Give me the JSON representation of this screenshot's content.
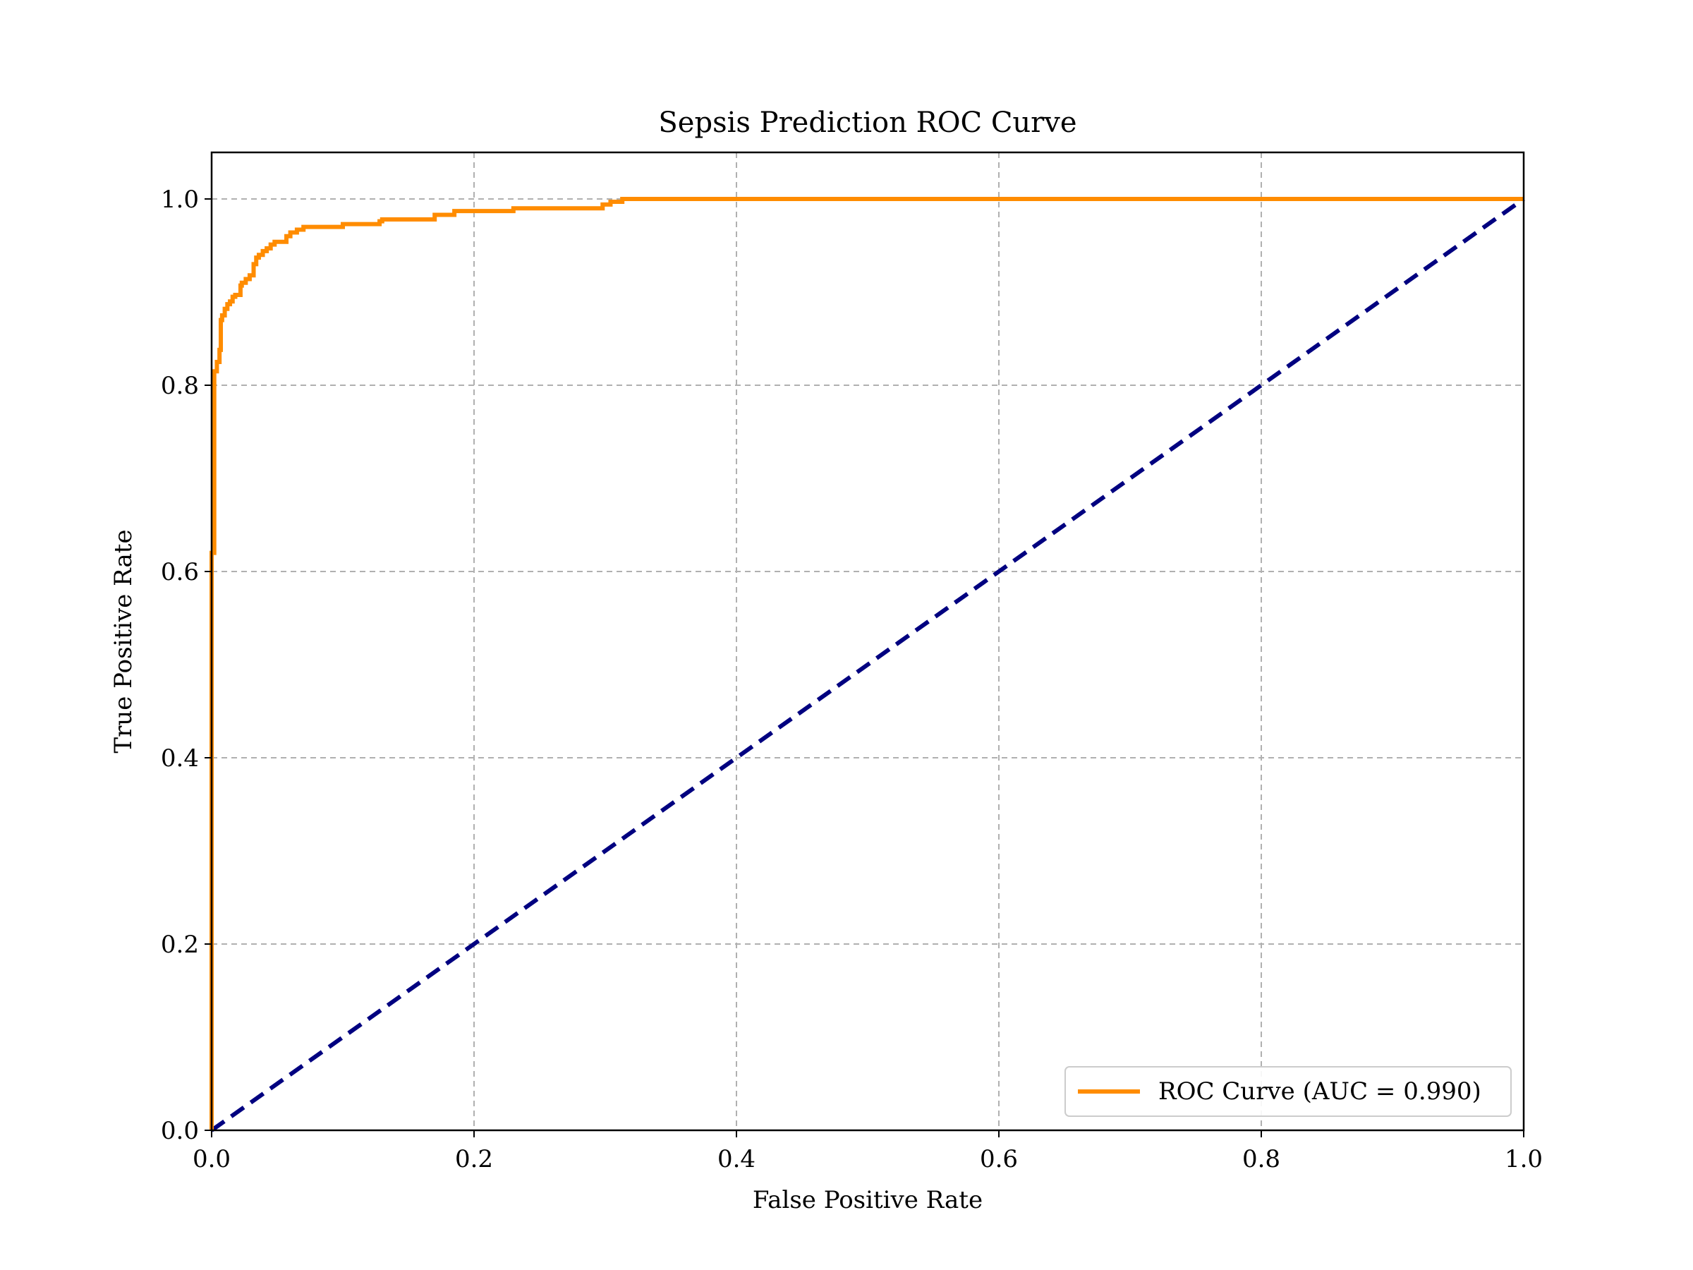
{
  "chart_data": {
    "type": "line",
    "title": "Sepsis Prediction ROC Curve",
    "xlabel": "False Positive Rate",
    "ylabel": "True Positive Rate",
    "xlim": [
      0.0,
      1.0
    ],
    "ylim": [
      0.0,
      1.05
    ],
    "xticks": [
      0.0,
      0.2,
      0.4,
      0.6,
      0.8,
      1.0
    ],
    "yticks": [
      0.0,
      0.2,
      0.4,
      0.6,
      0.8,
      1.0
    ],
    "xtick_labels": [
      "0.0",
      "0.2",
      "0.4",
      "0.6",
      "0.8",
      "1.0"
    ],
    "ytick_labels": [
      "0.0",
      "0.2",
      "0.4",
      "0.6",
      "0.8",
      "1.0"
    ],
    "grid": true,
    "legend_position": "bottom-right",
    "series": [
      {
        "name": "ROC Curve (AUC = 0.990)",
        "color": "#ff8c00",
        "line_style": "solid",
        "x": [
          0.0,
          0.0,
          0.002,
          0.002,
          0.004,
          0.004,
          0.006,
          0.006,
          0.007,
          0.007,
          0.008,
          0.008,
          0.01,
          0.01,
          0.012,
          0.012,
          0.014,
          0.014,
          0.016,
          0.016,
          0.018,
          0.018,
          0.022,
          0.022,
          0.023,
          0.023,
          0.026,
          0.026,
          0.029,
          0.029,
          0.032,
          0.032,
          0.034,
          0.034,
          0.036,
          0.036,
          0.039,
          0.039,
          0.042,
          0.042,
          0.045,
          0.045,
          0.048,
          0.048,
          0.057,
          0.057,
          0.06,
          0.06,
          0.065,
          0.065,
          0.07,
          0.07,
          0.1,
          0.1,
          0.128,
          0.128,
          0.13,
          0.13,
          0.17,
          0.17,
          0.185,
          0.185,
          0.23,
          0.23,
          0.298,
          0.298,
          0.304,
          0.304,
          0.313,
          0.313,
          1.0
        ],
        "y": [
          0.0,
          0.62,
          0.62,
          0.815,
          0.815,
          0.825,
          0.825,
          0.838,
          0.838,
          0.87,
          0.87,
          0.875,
          0.875,
          0.882,
          0.882,
          0.887,
          0.887,
          0.89,
          0.89,
          0.895,
          0.895,
          0.897,
          0.897,
          0.907,
          0.907,
          0.91,
          0.91,
          0.914,
          0.914,
          0.918,
          0.918,
          0.93,
          0.93,
          0.937,
          0.937,
          0.94,
          0.94,
          0.944,
          0.944,
          0.947,
          0.947,
          0.951,
          0.951,
          0.954,
          0.954,
          0.96,
          0.96,
          0.964,
          0.964,
          0.967,
          0.967,
          0.97,
          0.97,
          0.973,
          0.973,
          0.976,
          0.976,
          0.978,
          0.978,
          0.983,
          0.983,
          0.987,
          0.987,
          0.99,
          0.99,
          0.994,
          0.994,
          0.997,
          0.997,
          1.0,
          1.0
        ]
      },
      {
        "color": "#000080",
        "line_style": "dashed",
        "x": [
          0.0,
          1.0
        ],
        "y": [
          0.0,
          1.0
        ]
      }
    ]
  }
}
